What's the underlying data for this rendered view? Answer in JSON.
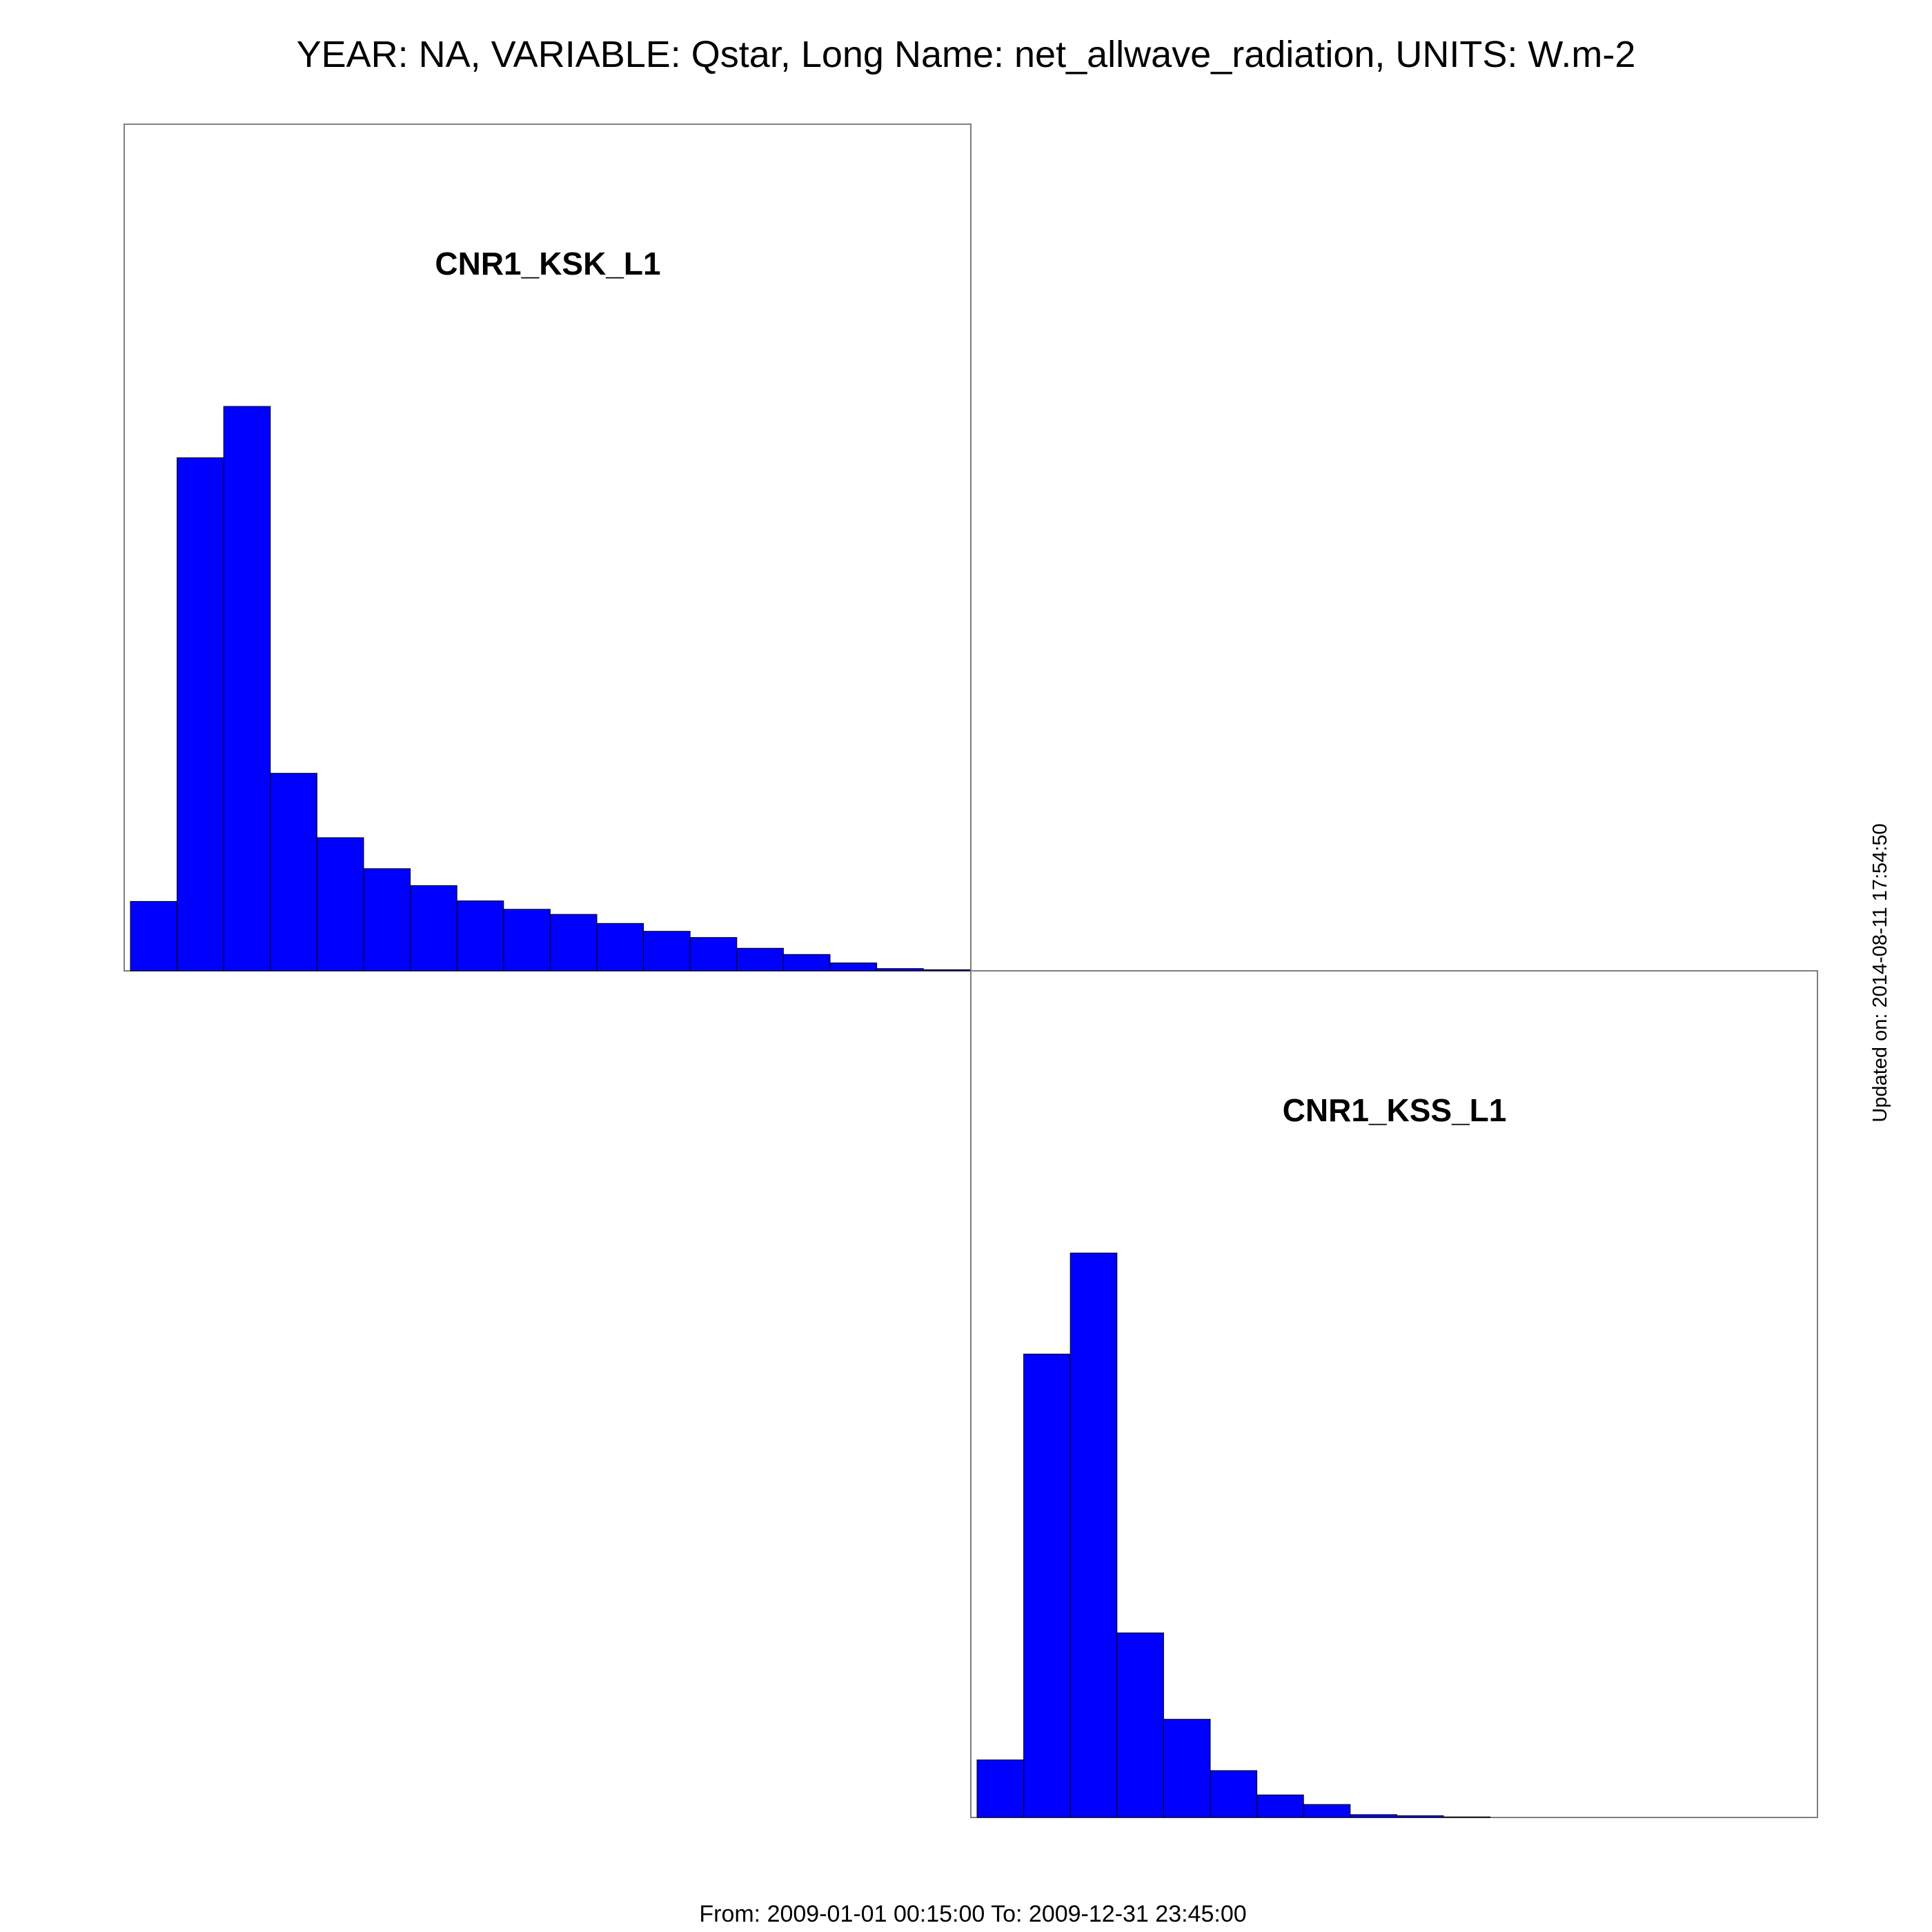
{
  "page": {
    "title": "YEAR: NA, VARIABLE: Qstar, Long Name: net_allwave_radiation, UNITS: W.m-2",
    "footer": "From: 2009-01-01 00:15:00 To: 2009-12-31 23:45:00",
    "updated": "Updated on: 2014-08-11 17:54:50"
  },
  "colors": {
    "bar": "#0000ff",
    "frame": "#7f7f7f",
    "background": "#ffffff"
  },
  "chart_data": [
    {
      "type": "bar",
      "title": "CNR1_KSK_L1",
      "xlabel": "",
      "ylabel": "",
      "grid": false,
      "legend": "none",
      "ylim": [
        0,
        100
      ],
      "values": [
        12.3,
        90.9,
        100,
        35,
        23.6,
        18.1,
        15.1,
        12.4,
        10.9,
        10.0,
        8.4,
        7.0,
        5.9,
        4.0,
        2.9,
        1.4,
        0.4,
        0.2
      ]
    },
    {
      "type": "bar",
      "title": "CNR1_KSS_L1",
      "xlabel": "",
      "ylabel": "",
      "grid": false,
      "legend": "none",
      "ylim": [
        0,
        100
      ],
      "values": [
        10.2,
        82.1,
        100,
        32.7,
        17.4,
        8.3,
        4.0,
        2.3,
        0.5,
        0.3,
        0.1,
        0,
        0,
        0,
        0,
        0,
        0,
        0
      ]
    }
  ]
}
